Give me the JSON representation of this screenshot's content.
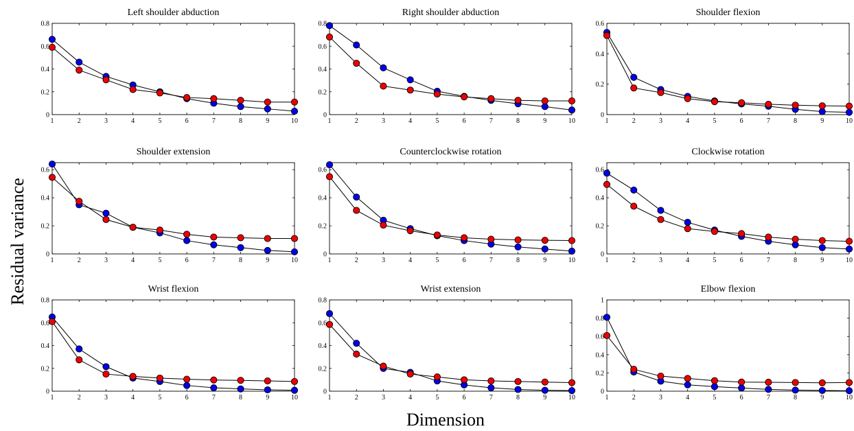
{
  "figure": {
    "ylabel": "Residual variance",
    "xlabel": "Dimension"
  },
  "colors": {
    "series_blue": "#0000ee",
    "series_red": "#ee0000",
    "line": "#000000"
  },
  "chart_data": [
    {
      "type": "line",
      "title": "Left shoulder abduction",
      "x": [
        1,
        2,
        3,
        4,
        5,
        6,
        7,
        8,
        9,
        10
      ],
      "xlim": [
        1,
        10
      ],
      "ylim": [
        0,
        0.8
      ],
      "yticks": [
        "0",
        "0.2",
        "0.4",
        "0.6",
        "0.8"
      ],
      "series": [
        {
          "color": "blue",
          "values": [
            0.66,
            0.46,
            0.335,
            0.26,
            0.2,
            0.14,
            0.1,
            0.07,
            0.05,
            0.03
          ]
        },
        {
          "color": "red",
          "values": [
            0.59,
            0.39,
            0.305,
            0.22,
            0.19,
            0.15,
            0.14,
            0.125,
            0.11,
            0.11
          ]
        }
      ]
    },
    {
      "type": "line",
      "title": "Right shoulder abduction",
      "x": [
        1,
        2,
        3,
        4,
        5,
        6,
        7,
        8,
        9,
        10
      ],
      "xlim": [
        1,
        10
      ],
      "ylim": [
        0,
        0.8
      ],
      "yticks": [
        "0",
        "0.2",
        "0.4",
        "0.6",
        "0.8"
      ],
      "series": [
        {
          "color": "blue",
          "values": [
            0.78,
            0.61,
            0.41,
            0.305,
            0.205,
            0.16,
            0.125,
            0.095,
            0.07,
            0.04
          ]
        },
        {
          "color": "red",
          "values": [
            0.68,
            0.45,
            0.25,
            0.215,
            0.18,
            0.155,
            0.14,
            0.125,
            0.12,
            0.12
          ]
        }
      ]
    },
    {
      "type": "line",
      "title": "Shoulder flexion",
      "x": [
        1,
        2,
        3,
        4,
        5,
        6,
        7,
        8,
        9,
        10
      ],
      "xlim": [
        1,
        10
      ],
      "ylim": [
        0,
        0.6
      ],
      "yticks": [
        "0",
        "0.2",
        "0.4",
        "0.6"
      ],
      "series": [
        {
          "color": "blue",
          "values": [
            0.54,
            0.245,
            0.165,
            0.12,
            0.09,
            0.07,
            0.055,
            0.035,
            0.02,
            0.015
          ]
        },
        {
          "color": "red",
          "values": [
            0.52,
            0.175,
            0.145,
            0.105,
            0.085,
            0.078,
            0.068,
            0.062,
            0.058,
            0.056
          ]
        }
      ]
    },
    {
      "type": "line",
      "title": "Shoulder extension",
      "x": [
        1,
        2,
        3,
        4,
        5,
        6,
        7,
        8,
        9,
        10
      ],
      "xlim": [
        1,
        10
      ],
      "ylim": [
        0,
        0.65
      ],
      "yticks": [
        "0",
        "0.2",
        "0.4",
        "0.6"
      ],
      "series": [
        {
          "color": "blue",
          "values": [
            0.64,
            0.35,
            0.29,
            0.19,
            0.15,
            0.095,
            0.065,
            0.045,
            0.025,
            0.015
          ]
        },
        {
          "color": "red",
          "values": [
            0.545,
            0.375,
            0.245,
            0.19,
            0.17,
            0.14,
            0.12,
            0.115,
            0.11,
            0.11
          ]
        }
      ]
    },
    {
      "type": "line",
      "title": "Counterclockwise rotation",
      "x": [
        1,
        2,
        3,
        4,
        5,
        6,
        7,
        8,
        9,
        10
      ],
      "xlim": [
        1,
        10
      ],
      "ylim": [
        0,
        0.65
      ],
      "yticks": [
        "0",
        "0.2",
        "0.4",
        "0.6"
      ],
      "series": [
        {
          "color": "blue",
          "values": [
            0.635,
            0.405,
            0.24,
            0.18,
            0.13,
            0.095,
            0.07,
            0.05,
            0.035,
            0.02
          ]
        },
        {
          "color": "red",
          "values": [
            0.55,
            0.31,
            0.205,
            0.165,
            0.135,
            0.115,
            0.105,
            0.1,
            0.097,
            0.095
          ]
        }
      ]
    },
    {
      "type": "line",
      "title": "Clockwise rotation",
      "x": [
        1,
        2,
        3,
        4,
        5,
        6,
        7,
        8,
        9,
        10
      ],
      "xlim": [
        1,
        10
      ],
      "ylim": [
        0,
        0.65
      ],
      "yticks": [
        "0",
        "0.2",
        "0.4",
        "0.6"
      ],
      "series": [
        {
          "color": "blue",
          "values": [
            0.575,
            0.455,
            0.31,
            0.225,
            0.17,
            0.125,
            0.09,
            0.065,
            0.045,
            0.035
          ]
        },
        {
          "color": "red",
          "values": [
            0.495,
            0.34,
            0.245,
            0.18,
            0.16,
            0.145,
            0.12,
            0.105,
            0.095,
            0.09
          ]
        }
      ]
    },
    {
      "type": "line",
      "title": "Wrist flexion",
      "x": [
        1,
        2,
        3,
        4,
        5,
        6,
        7,
        8,
        9,
        10
      ],
      "xlim": [
        1,
        10
      ],
      "ylim": [
        0,
        0.8
      ],
      "yticks": [
        "0",
        "0.2",
        "0.4",
        "0.6",
        "0.8"
      ],
      "series": [
        {
          "color": "blue",
          "values": [
            0.65,
            0.37,
            0.215,
            0.115,
            0.085,
            0.05,
            0.03,
            0.02,
            0.012,
            0.008
          ]
        },
        {
          "color": "red",
          "values": [
            0.61,
            0.275,
            0.15,
            0.13,
            0.115,
            0.105,
            0.098,
            0.095,
            0.09,
            0.085
          ]
        }
      ]
    },
    {
      "type": "line",
      "title": "Wrist extension",
      "x": [
        1,
        2,
        3,
        4,
        5,
        6,
        7,
        8,
        9,
        10
      ],
      "xlim": [
        1,
        10
      ],
      "ylim": [
        0,
        0.8
      ],
      "yticks": [
        "0",
        "0.2",
        "0.4",
        "0.6",
        "0.8"
      ],
      "series": [
        {
          "color": "blue",
          "values": [
            0.68,
            0.42,
            0.2,
            0.165,
            0.09,
            0.055,
            0.03,
            0.015,
            0.008,
            0.005
          ]
        },
        {
          "color": "red",
          "values": [
            0.585,
            0.325,
            0.22,
            0.15,
            0.125,
            0.1,
            0.09,
            0.085,
            0.08,
            0.075
          ]
        }
      ]
    },
    {
      "type": "line",
      "title": "Elbow flexion",
      "x": [
        1,
        2,
        3,
        4,
        5,
        6,
        7,
        8,
        9,
        10
      ],
      "xlim": [
        1,
        10
      ],
      "ylim": [
        0,
        1
      ],
      "yticks": [
        "0",
        "0.2",
        "0.4",
        "0.6",
        "0.8",
        "1"
      ],
      "series": [
        {
          "color": "blue",
          "values": [
            0.81,
            0.21,
            0.11,
            0.07,
            0.05,
            0.035,
            0.02,
            0.012,
            0.008,
            0.005
          ]
        },
        {
          "color": "red",
          "values": [
            0.61,
            0.24,
            0.165,
            0.14,
            0.115,
            0.1,
            0.098,
            0.095,
            0.092,
            0.095
          ]
        }
      ]
    }
  ]
}
